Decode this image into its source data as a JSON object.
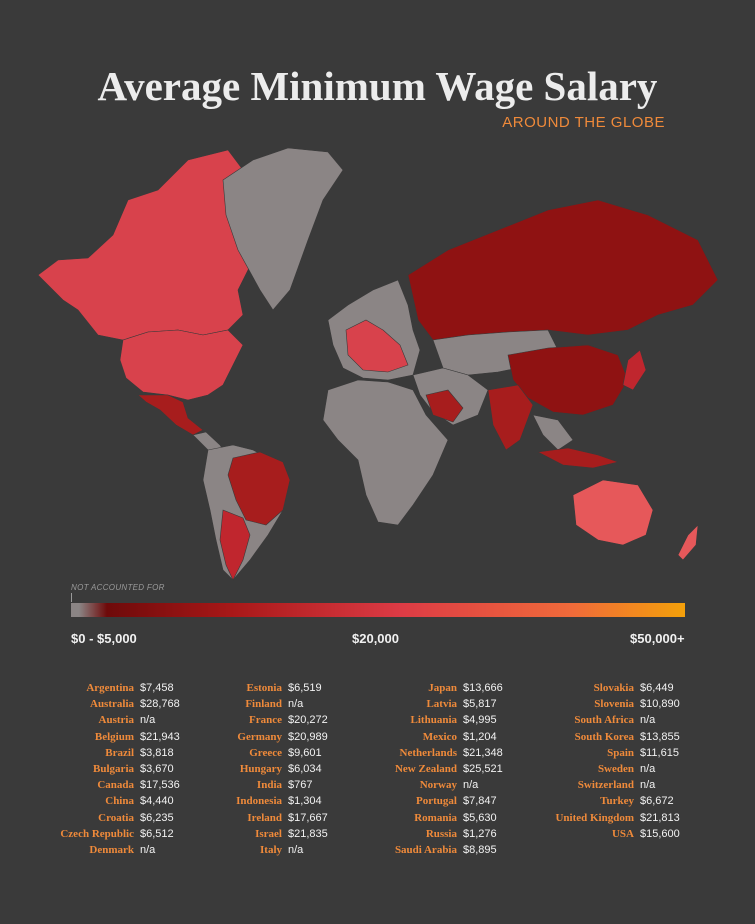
{
  "header": {
    "title": "Average Minimum Wage Salary",
    "subtitle": "AROUND THE GLOBE"
  },
  "legend": {
    "note": "NOT ACCOUNTED FOR",
    "labels": [
      "$0 - $5,000",
      "$20,000",
      "$50,000+"
    ],
    "colors": {
      "not_accounted": "#8b8585",
      "low": "#7a0c0c",
      "mid": "#dd3b45",
      "high": "#f3a00a"
    }
  },
  "wages": [
    [
      {
        "country": "Argentina",
        "value": "$7,458"
      },
      {
        "country": "Australia",
        "value": "$28,768"
      },
      {
        "country": "Austria",
        "value": "n/a"
      },
      {
        "country": "Belgium",
        "value": "$21,943"
      },
      {
        "country": "Brazil",
        "value": "$3,818"
      },
      {
        "country": "Bulgaria",
        "value": "$3,670"
      },
      {
        "country": "Canada",
        "value": "$17,536"
      },
      {
        "country": "China",
        "value": "$4,440"
      },
      {
        "country": "Croatia",
        "value": "$6,235"
      },
      {
        "country": "Czech Republic",
        "value": "$6,512"
      },
      {
        "country": "Denmark",
        "value": "n/a"
      }
    ],
    [
      {
        "country": "Estonia",
        "value": "$6,519"
      },
      {
        "country": "Finland",
        "value": "n/a"
      },
      {
        "country": "France",
        "value": "$20,272"
      },
      {
        "country": "Germany",
        "value": "$20,989"
      },
      {
        "country": "Greece",
        "value": "$9,601"
      },
      {
        "country": "Hungary",
        "value": "$6,034"
      },
      {
        "country": "India",
        "value": "$767"
      },
      {
        "country": "Indonesia",
        "value": "$1,304"
      },
      {
        "country": "Ireland",
        "value": "$17,667"
      },
      {
        "country": "Israel",
        "value": "$21,835"
      },
      {
        "country": "Italy",
        "value": "n/a"
      }
    ],
    [
      {
        "country": "Japan",
        "value": "$13,666"
      },
      {
        "country": "Latvia",
        "value": "$5,817"
      },
      {
        "country": "Lithuania",
        "value": "$4,995"
      },
      {
        "country": "Mexico",
        "value": "$1,204"
      },
      {
        "country": "Netherlands",
        "value": "$21,348"
      },
      {
        "country": "New Zealand",
        "value": "$25,521"
      },
      {
        "country": "Norway",
        "value": "n/a"
      },
      {
        "country": "Portugal",
        "value": "$7,847"
      },
      {
        "country": "Romania",
        "value": "$5,630"
      },
      {
        "country": "Russia",
        "value": "$1,276"
      },
      {
        "country": "Saudi Arabia",
        "value": "$8,895"
      }
    ],
    [
      {
        "country": "Slovakia",
        "value": "$6,449"
      },
      {
        "country": "Slovenia",
        "value": "$10,890"
      },
      {
        "country": "South Africa",
        "value": "n/a"
      },
      {
        "country": "South Korea",
        "value": "$13,855"
      },
      {
        "country": "Spain",
        "value": "$11,615"
      },
      {
        "country": "Sweden",
        "value": "n/a"
      },
      {
        "country": "Switzerland",
        "value": "n/a"
      },
      {
        "country": "Turkey",
        "value": "$6,672"
      },
      {
        "country": "United Kingdom",
        "value": "$21,813"
      },
      {
        "country": "USA",
        "value": "$15,600"
      }
    ]
  ]
}
